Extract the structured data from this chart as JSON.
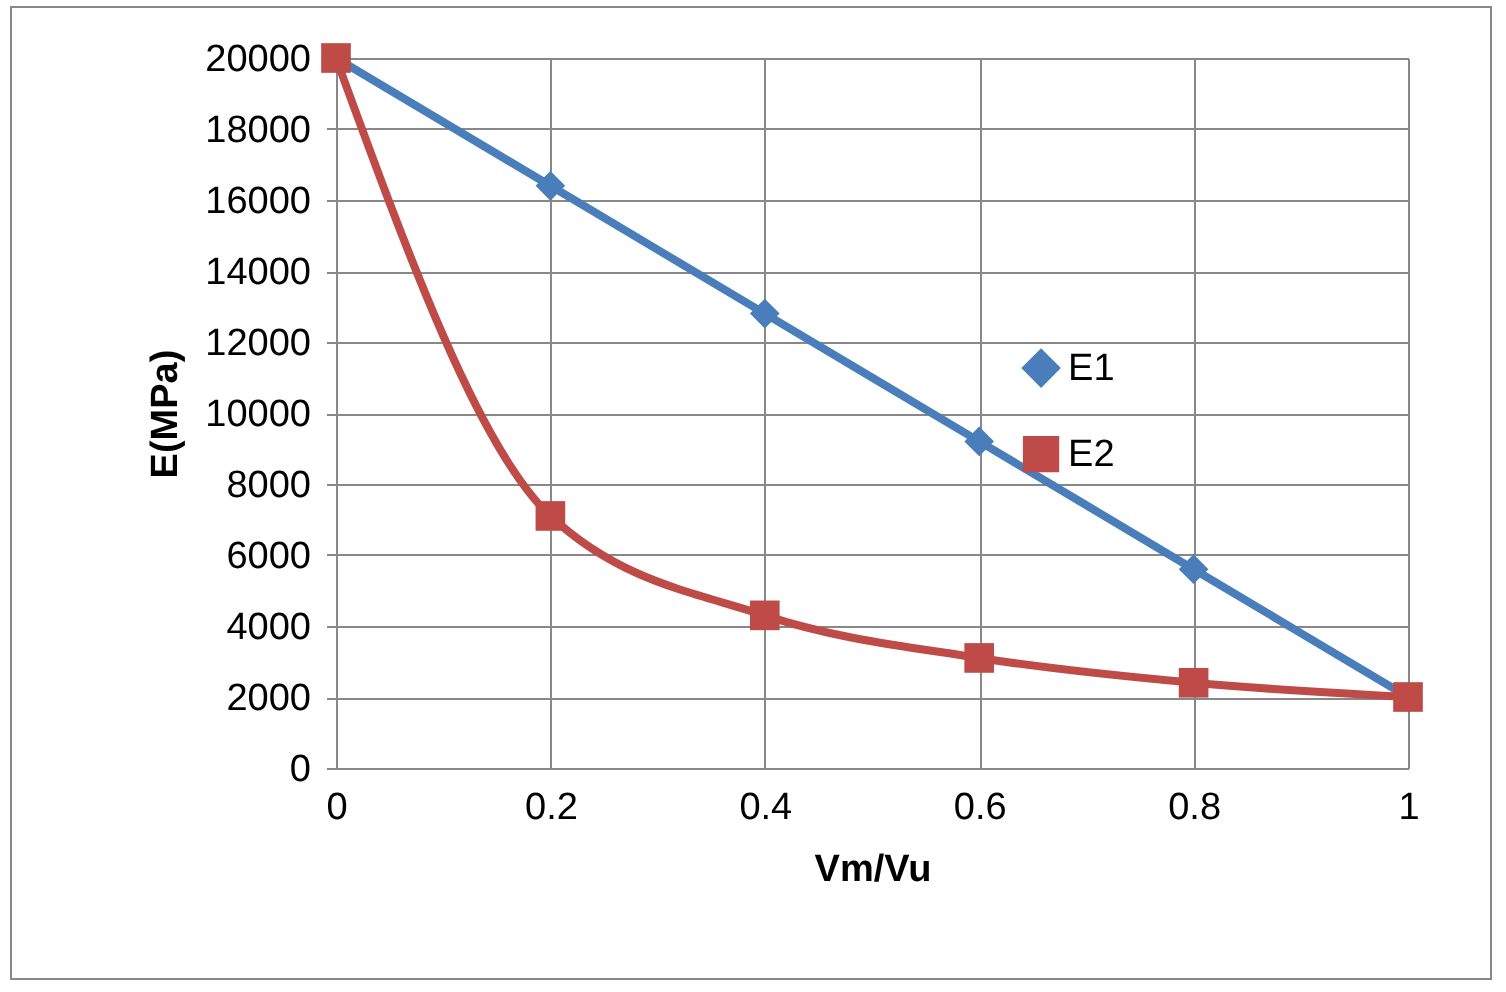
{
  "chart_data": {
    "type": "line",
    "xlabel": "Vm/Vu",
    "ylabel": "E(MPa)",
    "x": [
      0,
      0.2,
      0.4,
      0.6,
      0.8,
      1
    ],
    "series": [
      {
        "name": "E1",
        "color": "#4a7ebb",
        "marker": "diamond",
        "values": [
          20000,
          16400,
          12800,
          9200,
          5600,
          2000
        ]
      },
      {
        "name": "E2",
        "color": "#be4b48",
        "marker": "square",
        "values": [
          20000,
          7100,
          4300,
          3100,
          2400,
          2000
        ]
      }
    ],
    "xlim": [
      0,
      1
    ],
    "xticks": [
      0,
      0.2,
      0.4,
      0.6,
      0.8,
      1
    ],
    "ylim": [
      0,
      20000
    ],
    "yticks": [
      0,
      2000,
      4000,
      6000,
      8000,
      10000,
      12000,
      14000,
      16000,
      18000,
      20000
    ],
    "grid": true,
    "legend": "right",
    "line_style": "solid"
  }
}
